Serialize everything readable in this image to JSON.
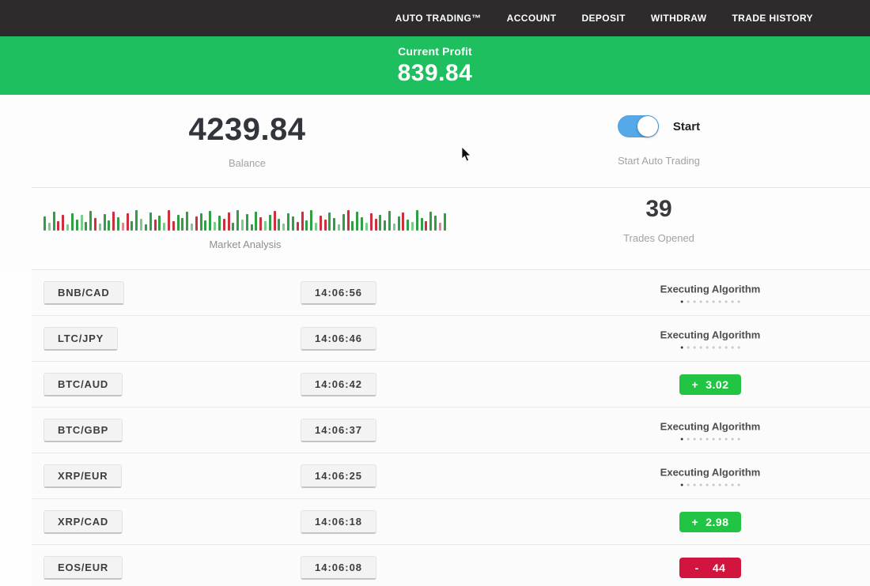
{
  "nav": {
    "items": [
      "AUTO TRADING™",
      "ACCOUNT",
      "DEPOSIT",
      "WITHDRAW",
      "TRADE HISTORY"
    ]
  },
  "banner": {
    "label": "Current Profit",
    "value": "839.84",
    "bg": "#1ebf5e"
  },
  "stats": {
    "balance_value": "4239.84",
    "balance_label": "Balance",
    "toggle_label": "Start",
    "toggle_sub": "Start Auto Trading",
    "toggle_on": true,
    "toggle_color": "#56a9e8"
  },
  "market": {
    "label": "Market Analysis",
    "trades_value": "39",
    "trades_label": "Trades Opened"
  },
  "chart_data": {
    "type": "bar",
    "title": "Market Analysis",
    "note": "decorative mini candle strip, green=up red=down, heights in px (max 30)",
    "palette": {
      "g": "#2f9e44",
      "G": "#7cc98d",
      "r": "#cc2f3d",
      "R": "#df8790"
    },
    "bars": [
      "g18",
      "G10",
      "g24",
      "r12",
      "r20",
      "G8",
      "g22",
      "g14",
      "G20",
      "g11",
      "g25",
      "r16",
      "G9",
      "g21",
      "g13",
      "r24",
      "g17",
      "R10",
      "r22",
      "g12",
      "g26",
      "G15",
      "g8",
      "g23",
      "r14",
      "g19",
      "G10",
      "r26",
      "r12",
      "g20",
      "g16",
      "g24",
      "G9",
      "r18",
      "g22",
      "g13",
      "g25",
      "G11",
      "g19",
      "r15",
      "r23",
      "g10",
      "g26",
      "G14",
      "g21",
      "g8",
      "g24",
      "r17",
      "G12",
      "g20",
      "r25",
      "g15",
      "G9",
      "g22",
      "g18",
      "r11",
      "r24",
      "g13",
      "g26",
      "G10",
      "r19",
      "r14",
      "g23",
      "g16",
      "G8",
      "g21",
      "r26",
      "g12",
      "g24",
      "g17",
      "G10",
      "r22",
      "r15",
      "g20",
      "g13",
      "g25",
      "G9",
      "g18",
      "r23",
      "g14",
      "G11",
      "g26",
      "g16",
      "r12",
      "g24",
      "g19",
      "R10",
      "g22"
    ]
  },
  "status_colors": {
    "profit": "#22c444",
    "loss": "#d1153f"
  },
  "table": {
    "rows": [
      {
        "pair": "BNB/CAD",
        "time": "14:06:56",
        "status": {
          "type": "executing",
          "label": "Executing Algorithm",
          "dots": 10
        }
      },
      {
        "pair": "LTC/JPY",
        "time": "14:06:46",
        "status": {
          "type": "executing",
          "label": "Executing Algorithm",
          "dots": 10
        }
      },
      {
        "pair": "BTC/AUD",
        "time": "14:06:42",
        "status": {
          "type": "badge",
          "sign": "+",
          "value": "3.02",
          "kind": "profit"
        }
      },
      {
        "pair": "BTC/GBP",
        "time": "14:06:37",
        "status": {
          "type": "executing",
          "label": "Executing Algorithm",
          "dots": 10
        }
      },
      {
        "pair": "XRP/EUR",
        "time": "14:06:25",
        "status": {
          "type": "executing",
          "label": "Executing Algorithm",
          "dots": 10
        }
      },
      {
        "pair": "XRP/CAD",
        "time": "14:06:18",
        "status": {
          "type": "badge",
          "sign": "+",
          "value": "2.98",
          "kind": "profit"
        }
      },
      {
        "pair": "EOS/EUR",
        "time": "14:06:08",
        "status": {
          "type": "badge",
          "sign": "-",
          "value": "44",
          "kind": "loss"
        }
      }
    ]
  }
}
